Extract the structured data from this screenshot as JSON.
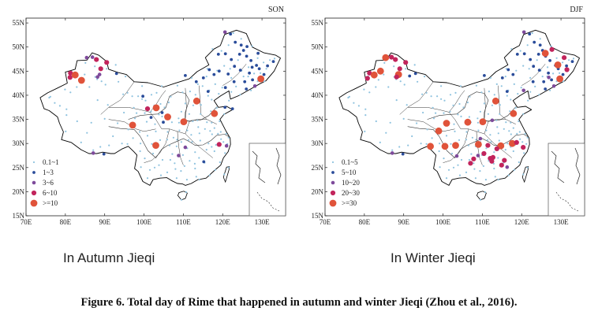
{
  "figure_caption": "Figure 6. Total day of Rime that happened in autumn and winter Jieqi (Zhou et al., 2016).",
  "colors": {
    "class1": "#8fc3df",
    "class2": "#2a4c9a",
    "class3": "#7e4a9b",
    "class4": "#c2245c",
    "class5": "#e0533a",
    "border": "#000000"
  },
  "axes": {
    "x_ticks": [
      "70E",
      "80E",
      "90E",
      "100E",
      "110E",
      "120E",
      "130E"
    ],
    "y_ticks": [
      "55N",
      "50N",
      "45N",
      "40N",
      "35N",
      "30N",
      "25N",
      "20N",
      "15N"
    ]
  },
  "panels": [
    {
      "season": "SON",
      "caption": "In Autumn Jieqi",
      "legend": [
        "0.1~1",
        "1~3",
        "3~6",
        "6~10",
        ">=10"
      ]
    },
    {
      "season": "DJF",
      "caption": "In Winter Jieqi",
      "legend": [
        "0.1~5",
        "5~10",
        "10~20",
        "20~30",
        ">=30"
      ]
    }
  ]
}
